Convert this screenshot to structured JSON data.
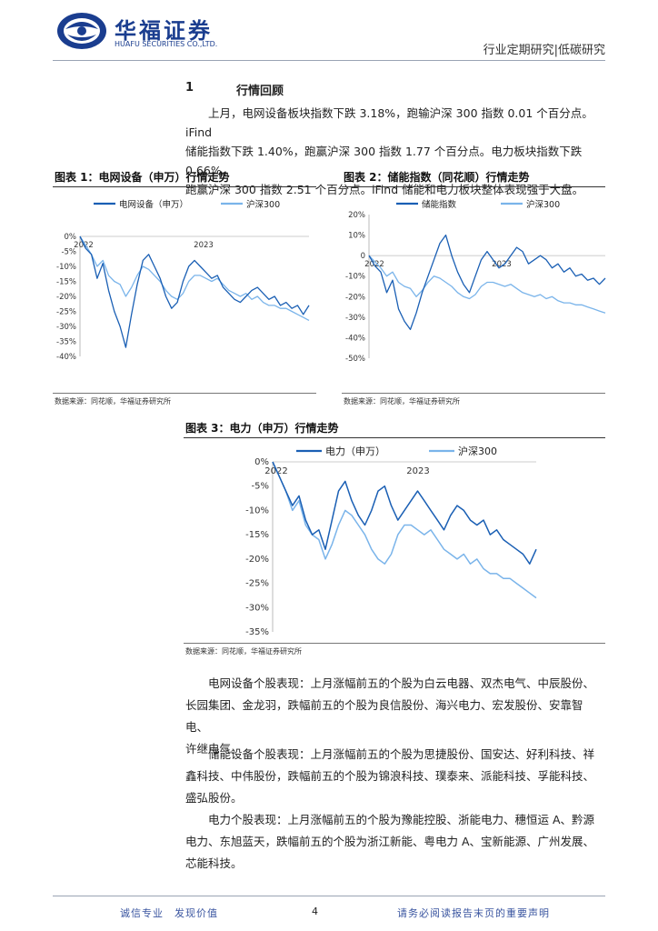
{
  "header": {
    "company_cn": "华福证券",
    "company_en": "HUAFU SECURITIES CO.,LTD.",
    "report_type": "行业定期研究|低碳研究"
  },
  "section": {
    "number": "1",
    "title": "行情回顾"
  },
  "intro": {
    "line1": "上月，电网设备板块指数下跌 3.18%，跑输沪深 300 指数 0.01 个百分点。iFind",
    "line2": "储能指数下跌 1.40%，跑赢沪深 300 指数 1.77 个百分点。电力板块指数下跌 0.66%，",
    "line3": "跑赢沪深 300 指数 2.51 个百分点。iFind 储能和电力板块整体表现强于大盘。"
  },
  "figures": {
    "fig1": {
      "title": "图表 1：电网设备（申万）行情走势",
      "source": "数据来源：同花顺，华福证券研究所"
    },
    "fig2": {
      "title": "图表 2：储能指数（同花顺）行情走势",
      "source": "数据来源：同花顺，华福证券研究所"
    },
    "fig3": {
      "title": "图表 3：电力（申万）行情走势",
      "source": "数据来源：同花顺，华福证券研究所"
    }
  },
  "chart_data": [
    {
      "type": "line",
      "x_labels": [
        "2022",
        "2023"
      ],
      "ylim": [
        -40,
        0
      ],
      "y_ticks": [
        "0%",
        "-5%",
        "-10%",
        "-15%",
        "-20%",
        "-25%",
        "-30%",
        "-35%",
        "-40%"
      ],
      "legend_position": "top",
      "series": [
        {
          "name": "电网设备（申万）",
          "color": "#1a5fb4",
          "values": [
            0,
            -4,
            -6,
            -14,
            -9,
            -18,
            -25,
            -30,
            -37,
            -26,
            -16,
            -8,
            -6,
            -10,
            -14,
            -20,
            -24,
            -22,
            -15,
            -10,
            -8,
            -10,
            -12,
            -14,
            -13,
            -17,
            -19,
            -21,
            -22,
            -20,
            -18,
            -17,
            -19,
            -21,
            -20,
            -23,
            -22,
            -24,
            -23,
            -26,
            -23
          ]
        },
        {
          "name": "沪深300",
          "color": "#7ab4ea",
          "values": [
            0,
            -3,
            -6,
            -10,
            -8,
            -13,
            -15,
            -16,
            -20,
            -17,
            -13,
            -10,
            -11,
            -13,
            -15,
            -18,
            -20,
            -21,
            -19,
            -15,
            -13,
            -13,
            -14,
            -15,
            -14,
            -16,
            -18,
            -19,
            -20,
            -19,
            -21,
            -20,
            -22,
            -23,
            -23,
            -24,
            -24,
            -25,
            -26,
            -27,
            -28
          ]
        }
      ]
    },
    {
      "type": "line",
      "x_labels": [
        "2022",
        "2023"
      ],
      "ylim": [
        -50,
        20
      ],
      "y_ticks": [
        "20%",
        "10%",
        "0",
        "-10%",
        "-20%",
        "-30%",
        "-40%",
        "-50%"
      ],
      "legend_position": "top",
      "series": [
        {
          "name": "储能指数",
          "color": "#1a5fb4",
          "values": [
            0,
            -5,
            -8,
            -18,
            -12,
            -26,
            -32,
            -36,
            -28,
            -18,
            -10,
            -2,
            6,
            10,
            0,
            -8,
            -14,
            -18,
            -10,
            -2,
            2,
            -2,
            -6,
            -4,
            0,
            4,
            2,
            -4,
            -2,
            0,
            -2,
            -6,
            -4,
            -8,
            -6,
            -10,
            -9,
            -12,
            -11,
            -14,
            -11
          ]
        },
        {
          "name": "沪深300",
          "color": "#7ab4ea",
          "values": [
            0,
            -3,
            -6,
            -10,
            -8,
            -13,
            -15,
            -16,
            -20,
            -17,
            -13,
            -10,
            -11,
            -13,
            -15,
            -18,
            -20,
            -21,
            -19,
            -15,
            -13,
            -13,
            -14,
            -15,
            -14,
            -16,
            -18,
            -19,
            -20,
            -19,
            -21,
            -20,
            -22,
            -23,
            -23,
            -24,
            -24,
            -25,
            -26,
            -27,
            -28
          ]
        }
      ]
    },
    {
      "type": "line",
      "x_labels": [
        "2022",
        "2023"
      ],
      "ylim": [
        -35,
        0
      ],
      "y_ticks": [
        "0%",
        "-5%",
        "-10%",
        "-15%",
        "-20%",
        "-25%",
        "-30%",
        "-35%"
      ],
      "legend_position": "top",
      "series": [
        {
          "name": "电力（申万）",
          "color": "#1a5fb4",
          "values": [
            0,
            -3,
            -6,
            -9,
            -7,
            -12,
            -15,
            -14,
            -18,
            -12,
            -6,
            -4,
            -8,
            -11,
            -13,
            -10,
            -6,
            -5,
            -9,
            -12,
            -10,
            -8,
            -6,
            -8,
            -10,
            -12,
            -14,
            -11,
            -9,
            -10,
            -12,
            -13,
            -12,
            -15,
            -14,
            -16,
            -17,
            -18,
            -19,
            -21,
            -18
          ]
        },
        {
          "name": "沪深300",
          "color": "#7ab4ea",
          "values": [
            0,
            -3,
            -6,
            -10,
            -8,
            -13,
            -15,
            -16,
            -20,
            -17,
            -13,
            -10,
            -11,
            -13,
            -15,
            -18,
            -20,
            -21,
            -19,
            -15,
            -13,
            -13,
            -14,
            -15,
            -14,
            -16,
            -18,
            -19,
            -20,
            -19,
            -21,
            -20,
            -22,
            -23,
            -23,
            -24,
            -24,
            -25,
            -26,
            -27,
            -28
          ]
        }
      ]
    }
  ],
  "stocks": {
    "grid_line1": "电网设备个股表现：上月涨幅前五的个股为白云电器、双杰电气、中辰股份、",
    "grid_line2": "长园集团、金龙羽，跌幅前五的个股为良信股份、海兴电力、宏发股份、安靠智电、",
    "grid_line3": "许继电气。",
    "storage_line1": "储能设备个股表现：上月涨幅前五的个股为思捷股份、国安达、好利科技、祥",
    "storage_line2": "鑫科技、中伟股份，跌幅前五的个股为锦浪科技、璞泰来、派能科技、孚能科技、",
    "storage_line3": "盛弘股份。",
    "power_line1": "电力个股表现：上月涨幅前五的个股为豫能控股、浙能电力、穗恒运 A、黔源",
    "power_line2": "电力、东旭蓝天，跌幅前五的个股为浙江新能、粤电力 A、宝新能源、广州发展、",
    "power_line3": "芯能科技。"
  },
  "footer": {
    "left": "诚信专业　发现价值",
    "page": "4",
    "right": "请务必阅读报告末页的重要声明"
  }
}
